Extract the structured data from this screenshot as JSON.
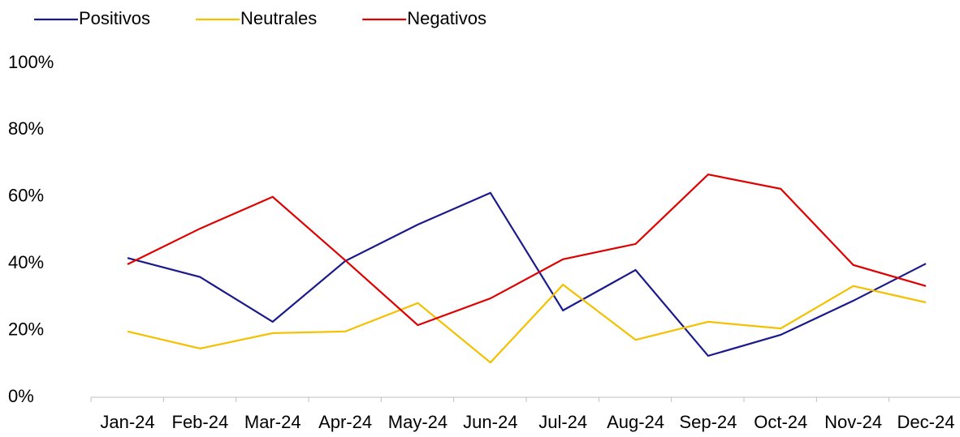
{
  "chart_data": {
    "type": "line",
    "categories": [
      "Jan-24",
      "Feb-24",
      "Mar-24",
      "Apr-24",
      "May-24",
      "Jun-24",
      "Jul-24",
      "Aug-24",
      "Sep-24",
      "Oct-24",
      "Nov-24",
      "Dec-24"
    ],
    "series": [
      {
        "name": "Positivos",
        "color": "#1a1a8c",
        "values": [
          41.7,
          36,
          22.6,
          40.8,
          51.7,
          61.2,
          26,
          38.1,
          12.4,
          18.7,
          28.9,
          40
        ]
      },
      {
        "name": "Neutrales",
        "color": "#f5c000",
        "values": [
          19.7,
          14.6,
          19.2,
          19.7,
          28.2,
          10.4,
          33.7,
          17.2,
          22.6,
          20.6,
          33.3,
          28.4
        ]
      },
      {
        "name": "Negativos",
        "color": "#e00000",
        "values": [
          39.8,
          50.5,
          60,
          41,
          21.6,
          29.6,
          41.3,
          45.9,
          66.7,
          62.4,
          39.6,
          33.3
        ]
      }
    ],
    "ylim": [
      0,
      100
    ],
    "yticks": [
      {
        "value": 0,
        "label": "0%"
      },
      {
        "value": 20,
        "label": "20%"
      },
      {
        "value": 40,
        "label": "40%"
      },
      {
        "value": 60,
        "label": "60%"
      },
      {
        "value": 80,
        "label": "80%"
      },
      {
        "value": 100,
        "label": "100%"
      }
    ],
    "grid": false,
    "legend": "top-left"
  }
}
